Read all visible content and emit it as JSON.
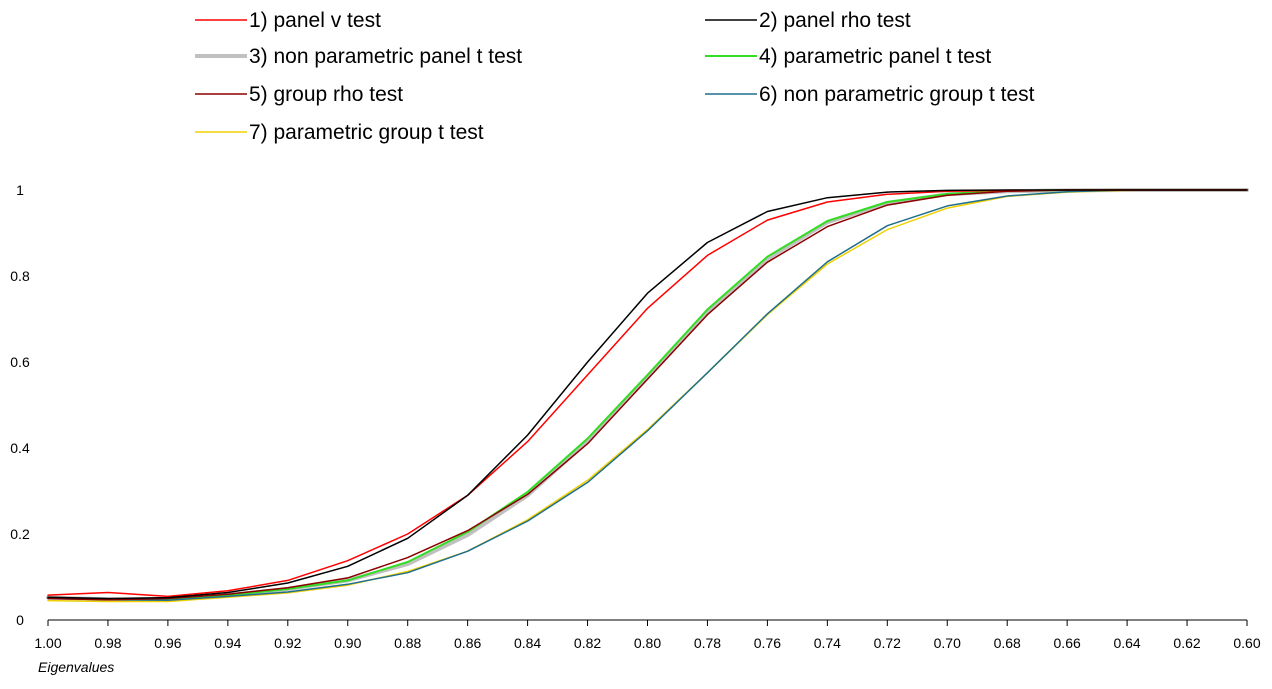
{
  "chart_data": {
    "type": "line",
    "xlabel": "Eigenvalues",
    "ylabel": "",
    "x": [
      1.0,
      0.98,
      0.96,
      0.94,
      0.92,
      0.9,
      0.88,
      0.86,
      0.84,
      0.82,
      0.8,
      0.78,
      0.76,
      0.74,
      0.72,
      0.7,
      0.68,
      0.66,
      0.64,
      0.62,
      0.6
    ],
    "x_tick_labels": [
      "1.00",
      "0.98",
      "0.96",
      "0.94",
      "0.92",
      "0.90",
      "0.88",
      "0.86",
      "0.84",
      "0.82",
      "0.80",
      "0.78",
      "0.76",
      "0.74",
      "0.72",
      "0.70",
      "0.68",
      "0.66",
      "0.64",
      "0.62",
      "0.60"
    ],
    "x_reversed": true,
    "xlim": [
      1.0,
      0.6
    ],
    "ylim": [
      0,
      1
    ],
    "y_ticks": [
      0,
      0.2,
      0.4,
      0.6,
      0.8,
      1
    ],
    "y_tick_labels": [
      "0",
      "0.2",
      "0.4",
      "0.6",
      "0.8",
      "1"
    ],
    "grid": false,
    "legend_position": "top",
    "series": [
      {
        "name": "1) panel v test",
        "color": "#ff0000",
        "width": 1.5,
        "values": [
          0.058,
          0.064,
          0.055,
          0.068,
          0.092,
          0.138,
          0.2,
          0.29,
          0.415,
          0.57,
          0.725,
          0.848,
          0.93,
          0.972,
          0.99,
          0.997,
          0.999,
          1.0,
          1.0,
          1.0,
          1.0
        ]
      },
      {
        "name": "2) panel rho test",
        "color": "#000000",
        "width": 1.5,
        "values": [
          0.053,
          0.05,
          0.052,
          0.064,
          0.086,
          0.125,
          0.19,
          0.29,
          0.43,
          0.6,
          0.76,
          0.878,
          0.95,
          0.982,
          0.995,
          0.999,
          1.0,
          1.0,
          1.0,
          1.0,
          1.0
        ]
      },
      {
        "name": "3) non parametric panel t test",
        "color": "#c0c0c0",
        "width": 4,
        "values": [
          0.052,
          0.048,
          0.047,
          0.058,
          0.072,
          0.092,
          0.13,
          0.198,
          0.29,
          0.415,
          0.565,
          0.715,
          0.84,
          0.925,
          0.97,
          0.99,
          0.997,
          0.999,
          1.0,
          1.0,
          1.0
        ]
      },
      {
        "name": "4) parametric panel t test",
        "color": "#33dd22",
        "width": 2,
        "values": [
          0.052,
          0.048,
          0.047,
          0.058,
          0.072,
          0.092,
          0.135,
          0.205,
          0.298,
          0.422,
          0.57,
          0.722,
          0.845,
          0.928,
          0.972,
          0.991,
          0.998,
          1.0,
          1.0,
          1.0,
          1.0
        ]
      },
      {
        "name": "5) group rho test",
        "color": "#8b0000",
        "width": 1.5,
        "values": [
          0.05,
          0.047,
          0.05,
          0.06,
          0.075,
          0.098,
          0.145,
          0.208,
          0.292,
          0.41,
          0.56,
          0.71,
          0.832,
          0.915,
          0.965,
          0.988,
          0.997,
          1.0,
          1.0,
          1.0,
          1.0
        ]
      },
      {
        "name": "6) non parametric group t test",
        "color": "#1f6f8b",
        "width": 1.5,
        "values": [
          0.05,
          0.047,
          0.046,
          0.055,
          0.065,
          0.083,
          0.11,
          0.16,
          0.23,
          0.32,
          0.44,
          0.575,
          0.712,
          0.833,
          0.917,
          0.963,
          0.986,
          0.996,
          1.0,
          1.0,
          1.0
        ]
      },
      {
        "name": "7) parametric group t test",
        "color": "#f2d000",
        "width": 1.5,
        "values": [
          0.045,
          0.043,
          0.043,
          0.053,
          0.063,
          0.081,
          0.113,
          0.16,
          0.233,
          0.325,
          0.443,
          0.575,
          0.71,
          0.828,
          0.908,
          0.958,
          0.985,
          0.995,
          0.999,
          1.0,
          1.0
        ]
      }
    ]
  }
}
